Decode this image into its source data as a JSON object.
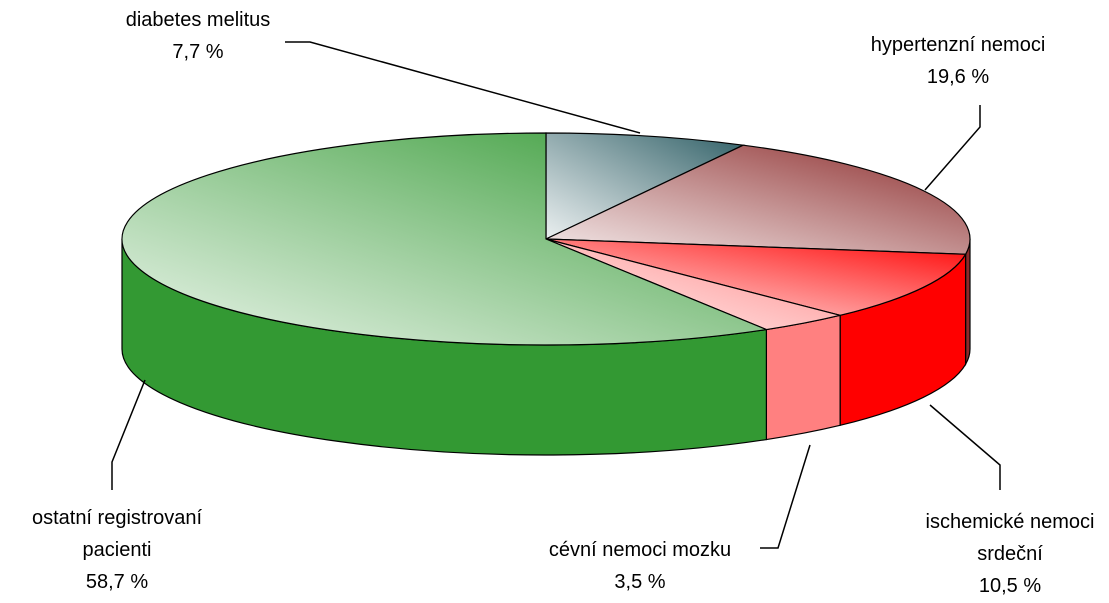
{
  "chart_data": {
    "type": "pie",
    "categories": [
      "diabetes melitus",
      "hypertenzní nemoci",
      "ischemické nemoci srdeční",
      "cévní nemoci mozku",
      "ostatní registrovaní pacienti"
    ],
    "values": [
      7.7,
      19.6,
      10.5,
      3.5,
      58.7
    ],
    "value_labels": [
      "7,7 %",
      "19,6 %",
      "10,5 %",
      "3,5 %",
      "58,7 %"
    ],
    "colors": [
      "#2f5f66",
      "#8b2a2a",
      "#ff0000",
      "#ff8080",
      "#339933"
    ]
  }
}
